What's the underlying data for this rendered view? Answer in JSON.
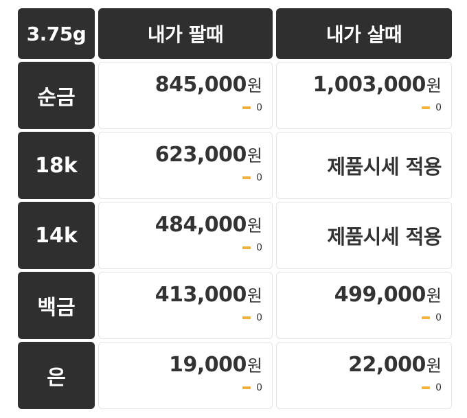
{
  "header": {
    "weight": "3.75g",
    "sell_label": "내가 팔때",
    "buy_label": "내가 살때"
  },
  "rows": [
    {
      "metal": "순금",
      "sell": {
        "price": "845,000",
        "unit": "원",
        "change": "0"
      },
      "buy": {
        "price": "1,003,000",
        "unit": "원",
        "change": "0"
      }
    },
    {
      "metal": "18k",
      "sell": {
        "price": "623,000",
        "unit": "원",
        "change": "0"
      },
      "buy": {
        "text": "제품시세 적용"
      }
    },
    {
      "metal": "14k",
      "sell": {
        "price": "484,000",
        "unit": "원",
        "change": "0"
      },
      "buy": {
        "text": "제품시세 적용"
      }
    },
    {
      "metal": "백금",
      "sell": {
        "price": "413,000",
        "unit": "원",
        "change": "0"
      },
      "buy": {
        "price": "499,000",
        "unit": "원",
        "change": "0"
      }
    },
    {
      "metal": "은",
      "sell": {
        "price": "19,000",
        "unit": "원",
        "change": "0"
      },
      "buy": {
        "price": "22,000",
        "unit": "원",
        "change": "0"
      }
    }
  ],
  "colors": {
    "header_bg": "#2f2f2f",
    "change_dash": "#f2b23a",
    "cell_border": "#e4e4e4"
  },
  "icons": {
    "change": "flat-change-dash-icon"
  }
}
